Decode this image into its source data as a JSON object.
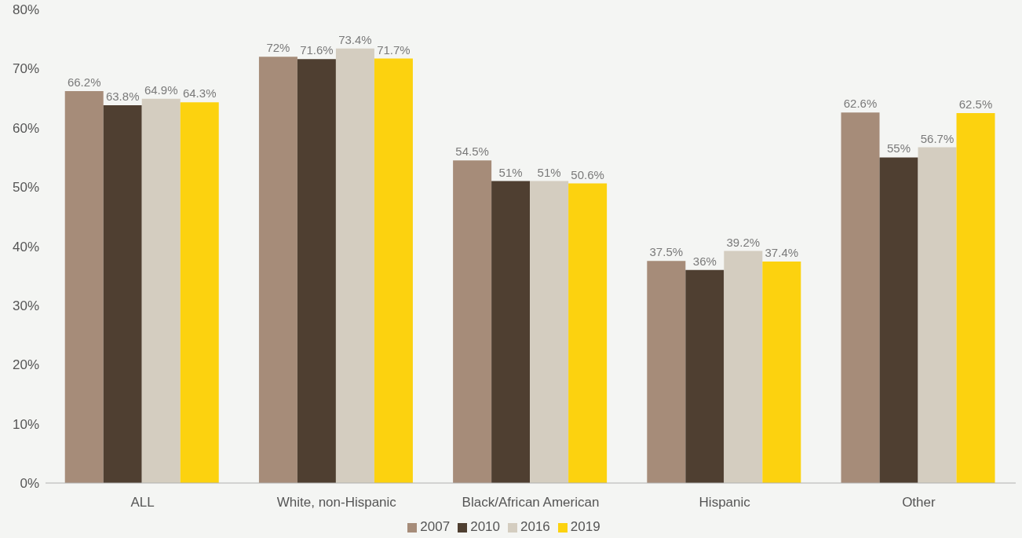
{
  "chart_data": {
    "type": "bar",
    "categories": [
      "ALL",
      "White, non-Hispanic",
      "Black/African American",
      "Hispanic",
      "Other"
    ],
    "series": [
      {
        "name": "2007",
        "color": "#a68c79",
        "values": [
          66.2,
          72,
          54.5,
          37.5,
          62.6
        ],
        "value_labels": [
          "66.2%",
          "72%",
          "54.5%",
          "37.5%",
          "62.6%"
        ]
      },
      {
        "name": "2010",
        "color": "#4f3f31",
        "values": [
          63.8,
          71.6,
          51,
          36,
          55
        ],
        "value_labels": [
          "63.8%",
          "71.6%",
          "51%",
          "36%",
          "55%"
        ]
      },
      {
        "name": "2016",
        "color": "#d4cdc0",
        "values": [
          64.9,
          73.4,
          51,
          39.2,
          56.7
        ],
        "value_labels": [
          "64.9%",
          "73.4%",
          "51%",
          "39.2%",
          "56.7%"
        ]
      },
      {
        "name": "2019",
        "color": "#fcd20f",
        "values": [
          64.3,
          71.7,
          50.6,
          37.4,
          62.5
        ],
        "value_labels": [
          "64.3%",
          "71.7%",
          "50.6%",
          "37.4%",
          "62.5%"
        ]
      }
    ],
    "ylim": [
      0,
      80
    ],
    "yticks": [
      {
        "value": 0,
        "label": "0%"
      },
      {
        "value": 10,
        "label": "10%"
      },
      {
        "value": 20,
        "label": "20%"
      },
      {
        "value": 30,
        "label": "30%"
      },
      {
        "value": 40,
        "label": "40%"
      },
      {
        "value": 50,
        "label": "50%"
      },
      {
        "value": 60,
        "label": "60%"
      },
      {
        "value": 70,
        "label": "70%"
      },
      {
        "value": 80,
        "label": "80%"
      }
    ],
    "grid": false,
    "legend": "bottom"
  }
}
